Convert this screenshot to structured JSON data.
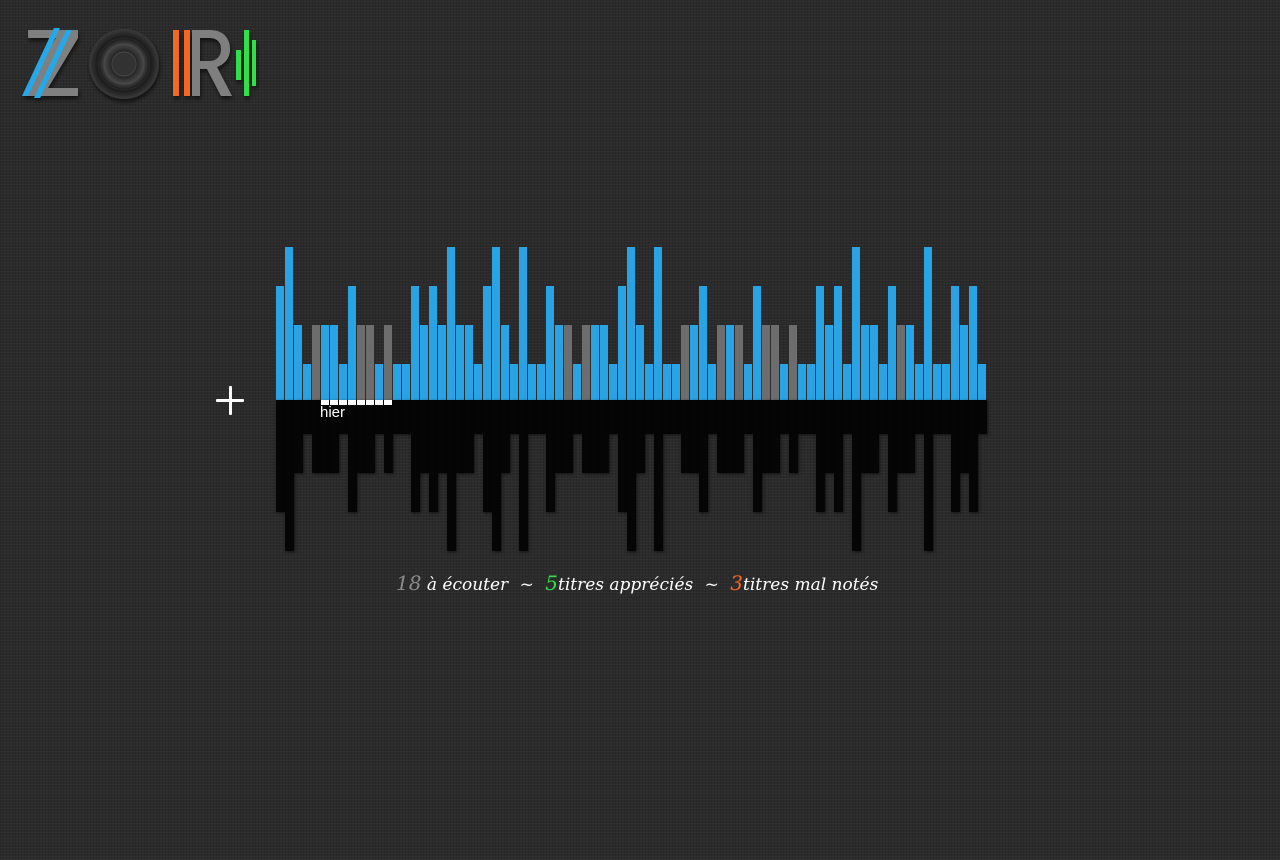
{
  "app": {
    "logo_text": "ZORI",
    "colors": {
      "logo_gray": "#7f7f7f",
      "logo_blue": "#28a7e7",
      "logo_orange": "#f26a22",
      "logo_green": "#2de04a"
    }
  },
  "add_button": {
    "icon": "plus-icon"
  },
  "timeline": {
    "today_label": "hier",
    "colors": {
      "bar_blue": "#29a3e4",
      "bar_gray": "#6d6d6d",
      "reflection": "#050505",
      "marker": "#ffffff"
    },
    "scale_max": 4,
    "days": [
      {
        "level": 3,
        "status": "blue"
      },
      {
        "level": 4,
        "status": "blue"
      },
      {
        "level": 2,
        "status": "blue"
      },
      {
        "level": 1,
        "status": "blue"
      },
      {
        "level": 2,
        "status": "gray"
      },
      {
        "level": 2,
        "status": "blue"
      },
      {
        "level": 2,
        "status": "blue"
      },
      {
        "level": 1,
        "status": "blue"
      },
      {
        "level": 3,
        "status": "blue"
      },
      {
        "level": 2,
        "status": "gray"
      },
      {
        "level": 2,
        "status": "gray"
      },
      {
        "level": 1,
        "status": "blue"
      },
      {
        "level": 2,
        "status": "gray"
      },
      {
        "level": 1,
        "status": "blue"
      },
      {
        "level": 1,
        "status": "blue"
      },
      {
        "level": 3,
        "status": "blue"
      },
      {
        "level": 2,
        "status": "blue"
      },
      {
        "level": 3,
        "status": "blue"
      },
      {
        "level": 2,
        "status": "blue"
      },
      {
        "level": 4,
        "status": "blue"
      },
      {
        "level": 2,
        "status": "blue"
      },
      {
        "level": 2,
        "status": "blue"
      },
      {
        "level": 1,
        "status": "blue"
      },
      {
        "level": 3,
        "status": "blue"
      },
      {
        "level": 4,
        "status": "blue"
      },
      {
        "level": 2,
        "status": "blue"
      },
      {
        "level": 1,
        "status": "blue"
      },
      {
        "level": 4,
        "status": "blue"
      },
      {
        "level": 1,
        "status": "blue"
      },
      {
        "level": 1,
        "status": "blue"
      },
      {
        "level": 3,
        "status": "blue"
      },
      {
        "level": 2,
        "status": "blue"
      },
      {
        "level": 2,
        "status": "gray"
      },
      {
        "level": 1,
        "status": "blue"
      },
      {
        "level": 2,
        "status": "gray"
      },
      {
        "level": 2,
        "status": "blue"
      },
      {
        "level": 2,
        "status": "blue"
      },
      {
        "level": 1,
        "status": "blue"
      },
      {
        "level": 3,
        "status": "blue"
      },
      {
        "level": 4,
        "status": "blue"
      },
      {
        "level": 2,
        "status": "blue"
      },
      {
        "level": 1,
        "status": "blue"
      },
      {
        "level": 4,
        "status": "blue"
      },
      {
        "level": 1,
        "status": "blue"
      },
      {
        "level": 1,
        "status": "blue"
      },
      {
        "level": 2,
        "status": "gray"
      },
      {
        "level": 2,
        "status": "blue"
      },
      {
        "level": 3,
        "status": "blue"
      },
      {
        "level": 1,
        "status": "blue"
      },
      {
        "level": 2,
        "status": "gray"
      },
      {
        "level": 2,
        "status": "blue"
      },
      {
        "level": 2,
        "status": "gray"
      },
      {
        "level": 1,
        "status": "blue"
      },
      {
        "level": 3,
        "status": "blue"
      },
      {
        "level": 2,
        "status": "gray"
      },
      {
        "level": 2,
        "status": "gray"
      },
      {
        "level": 1,
        "status": "blue"
      },
      {
        "level": 2,
        "status": "gray"
      },
      {
        "level": 1,
        "status": "blue"
      },
      {
        "level": 1,
        "status": "blue"
      },
      {
        "level": 3,
        "status": "blue"
      },
      {
        "level": 2,
        "status": "blue"
      },
      {
        "level": 3,
        "status": "blue"
      },
      {
        "level": 1,
        "status": "blue"
      },
      {
        "level": 4,
        "status": "blue"
      },
      {
        "level": 2,
        "status": "blue"
      },
      {
        "level": 2,
        "status": "blue"
      },
      {
        "level": 1,
        "status": "blue"
      },
      {
        "level": 3,
        "status": "blue"
      },
      {
        "level": 2,
        "status": "gray"
      },
      {
        "level": 2,
        "status": "blue"
      },
      {
        "level": 1,
        "status": "blue"
      },
      {
        "level": 4,
        "status": "blue"
      },
      {
        "level": 1,
        "status": "blue"
      },
      {
        "level": 1,
        "status": "blue"
      },
      {
        "level": 3,
        "status": "blue"
      },
      {
        "level": 2,
        "status": "blue"
      },
      {
        "level": 3,
        "status": "blue"
      },
      {
        "level": 1,
        "status": "blue"
      }
    ]
  },
  "stats": {
    "to_listen_count": "18",
    "to_listen_label": "à écouter",
    "separator1": "~",
    "liked_count": "5",
    "liked_label": "titres appréciés",
    "separator2": "~",
    "disliked_count": "3",
    "disliked_label": "titres mal notés",
    "colors": {
      "to_listen": "#8a8a8a",
      "liked": "#2de04a",
      "disliked": "#f26a22"
    }
  }
}
